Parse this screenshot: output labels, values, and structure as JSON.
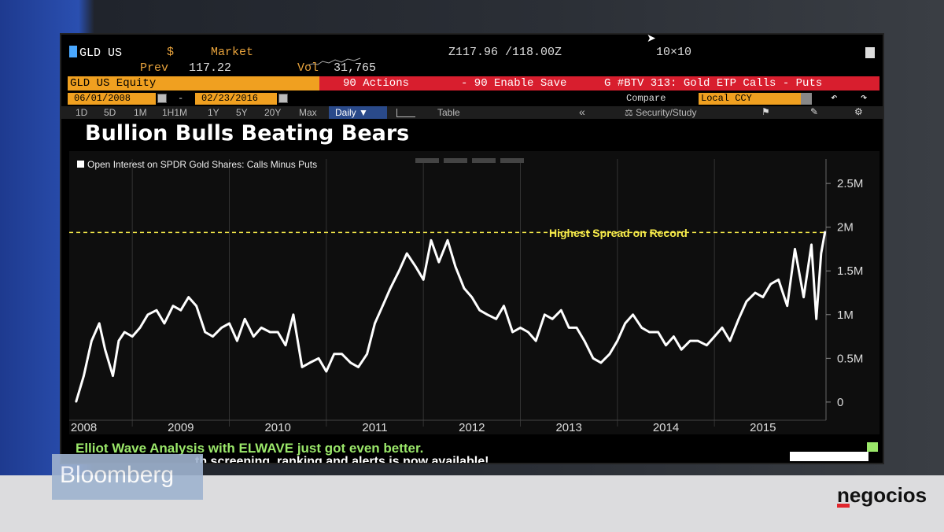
{
  "header": {
    "ticker": "GLD US",
    "currency": "$",
    "market_label": "Market",
    "bid_ask": "Z117.96 /118.00Z",
    "size": "10×10",
    "prev_label": "Prev",
    "prev_value": "117.22",
    "vol_label": "Vol",
    "vol_value": "31,765"
  },
  "command_bar": {
    "security": "GLD US Equity",
    "actions": "90 Actions",
    "enable_save": "- 90 Enable Save",
    "btv": "G #BTV 313: Gold ETP Calls - Puts"
  },
  "range_bar": {
    "start_date": "06/01/2008",
    "end_date": "02/23/2016",
    "dash": "-",
    "compare_label": "Compare",
    "currency_option": "Local CCY"
  },
  "periods": [
    "1D",
    "5D",
    "1M",
    "1H1M",
    "1Y",
    "5Y",
    "20Y",
    "Max"
  ],
  "toolbar": {
    "daily_label": "Daily ▼",
    "table_label": "Table",
    "collapse_label": "«",
    "security_study_label": "Security/Study"
  },
  "icons": {
    "flag": "flag-icon",
    "edit": "edit-icon",
    "settings": "gear-icon",
    "undo": "undo-icon",
    "redo": "redo-icon",
    "calendar": "calendar-icon"
  },
  "chart_data": {
    "type": "line",
    "title": "Bullion Bulls Beating Bears",
    "legend": "Open Interest on SPDR Gold Shares: Calls Minus Puts",
    "legend_position": "top-left",
    "xlabel": "",
    "ylabel": "",
    "x_tick_labels": [
      "2008",
      "2009",
      "2010",
      "2011",
      "2012",
      "2013",
      "2014",
      "2015"
    ],
    "y_tick_labels": [
      "0",
      "0.5M",
      "1M",
      "1.5M",
      "2M",
      "2.5M"
    ],
    "y_axis_side": "right",
    "ylim": [
      -0.1,
      2.6
    ],
    "xlim": [
      2008.35,
      2016.15
    ],
    "grid": true,
    "series": [
      {
        "name": "",
        "color": "#ffffff",
        "x": [
          2008.42,
          2008.5,
          2008.58,
          2008.66,
          2008.72,
          2008.8,
          2008.86,
          2008.92,
          2009.0,
          2009.08,
          2009.16,
          2009.25,
          2009.33,
          2009.42,
          2009.5,
          2009.58,
          2009.66,
          2009.75,
          2009.83,
          2009.92,
          2010.0,
          2010.08,
          2010.16,
          2010.25,
          2010.33,
          2010.42,
          2010.5,
          2010.58,
          2010.66,
          2010.75,
          2010.83,
          2010.92,
          2011.0,
          2011.08,
          2011.16,
          2011.25,
          2011.33,
          2011.42,
          2011.5,
          2011.58,
          2011.66,
          2011.75,
          2011.83,
          2011.92,
          2012.0,
          2012.08,
          2012.16,
          2012.25,
          2012.33,
          2012.42,
          2012.5,
          2012.58,
          2012.66,
          2012.75,
          2012.83,
          2012.92,
          2013.0,
          2013.08,
          2013.16,
          2013.25,
          2013.33,
          2013.42,
          2013.5,
          2013.58,
          2013.66,
          2013.75,
          2013.83,
          2013.92,
          2014.0,
          2014.08,
          2014.16,
          2014.25,
          2014.33,
          2014.42,
          2014.5,
          2014.58,
          2014.66,
          2014.75,
          2014.83,
          2014.92,
          2015.0,
          2015.08,
          2015.16,
          2015.25,
          2015.33,
          2015.42,
          2015.5,
          2015.58,
          2015.66,
          2015.75,
          2015.83,
          2015.92,
          2016.0,
          2016.05,
          2016.1,
          2016.14
        ],
        "values": [
          0.0,
          0.3,
          0.7,
          0.9,
          0.6,
          0.3,
          0.7,
          0.8,
          0.75,
          0.85,
          1.0,
          1.05,
          0.9,
          1.1,
          1.05,
          1.2,
          1.1,
          0.8,
          0.75,
          0.85,
          0.9,
          0.7,
          0.95,
          0.75,
          0.85,
          0.8,
          0.8,
          0.65,
          1.0,
          0.4,
          0.45,
          0.5,
          0.35,
          0.55,
          0.55,
          0.45,
          0.4,
          0.55,
          0.9,
          1.1,
          1.3,
          1.5,
          1.7,
          1.55,
          1.4,
          1.85,
          1.6,
          1.85,
          1.55,
          1.3,
          1.2,
          1.05,
          1.0,
          0.95,
          1.1,
          0.8,
          0.85,
          0.8,
          0.7,
          1.0,
          0.95,
          1.05,
          0.85,
          0.85,
          0.7,
          0.5,
          0.45,
          0.55,
          0.7,
          0.9,
          1.0,
          0.85,
          0.8,
          0.8,
          0.65,
          0.75,
          0.6,
          0.7,
          0.7,
          0.65,
          0.75,
          0.85,
          0.7,
          0.95,
          1.15,
          1.25,
          1.2,
          1.35,
          1.4,
          1.1,
          1.75,
          1.2,
          1.8,
          0.95,
          1.7,
          1.95
        ]
      }
    ],
    "reference_line": {
      "value": 1.94,
      "style": "dashed",
      "color": "#f5e94a"
    },
    "annotation": "Highest Spread on Record"
  },
  "banner": {
    "line1": "Elliot Wave Analysis with ELWAVE just got even better.",
    "line2": "th screening, ranking and alerts is now available!"
  },
  "watermarks": {
    "bloomberg": "Bloomberg",
    "negocios": "negocios"
  }
}
